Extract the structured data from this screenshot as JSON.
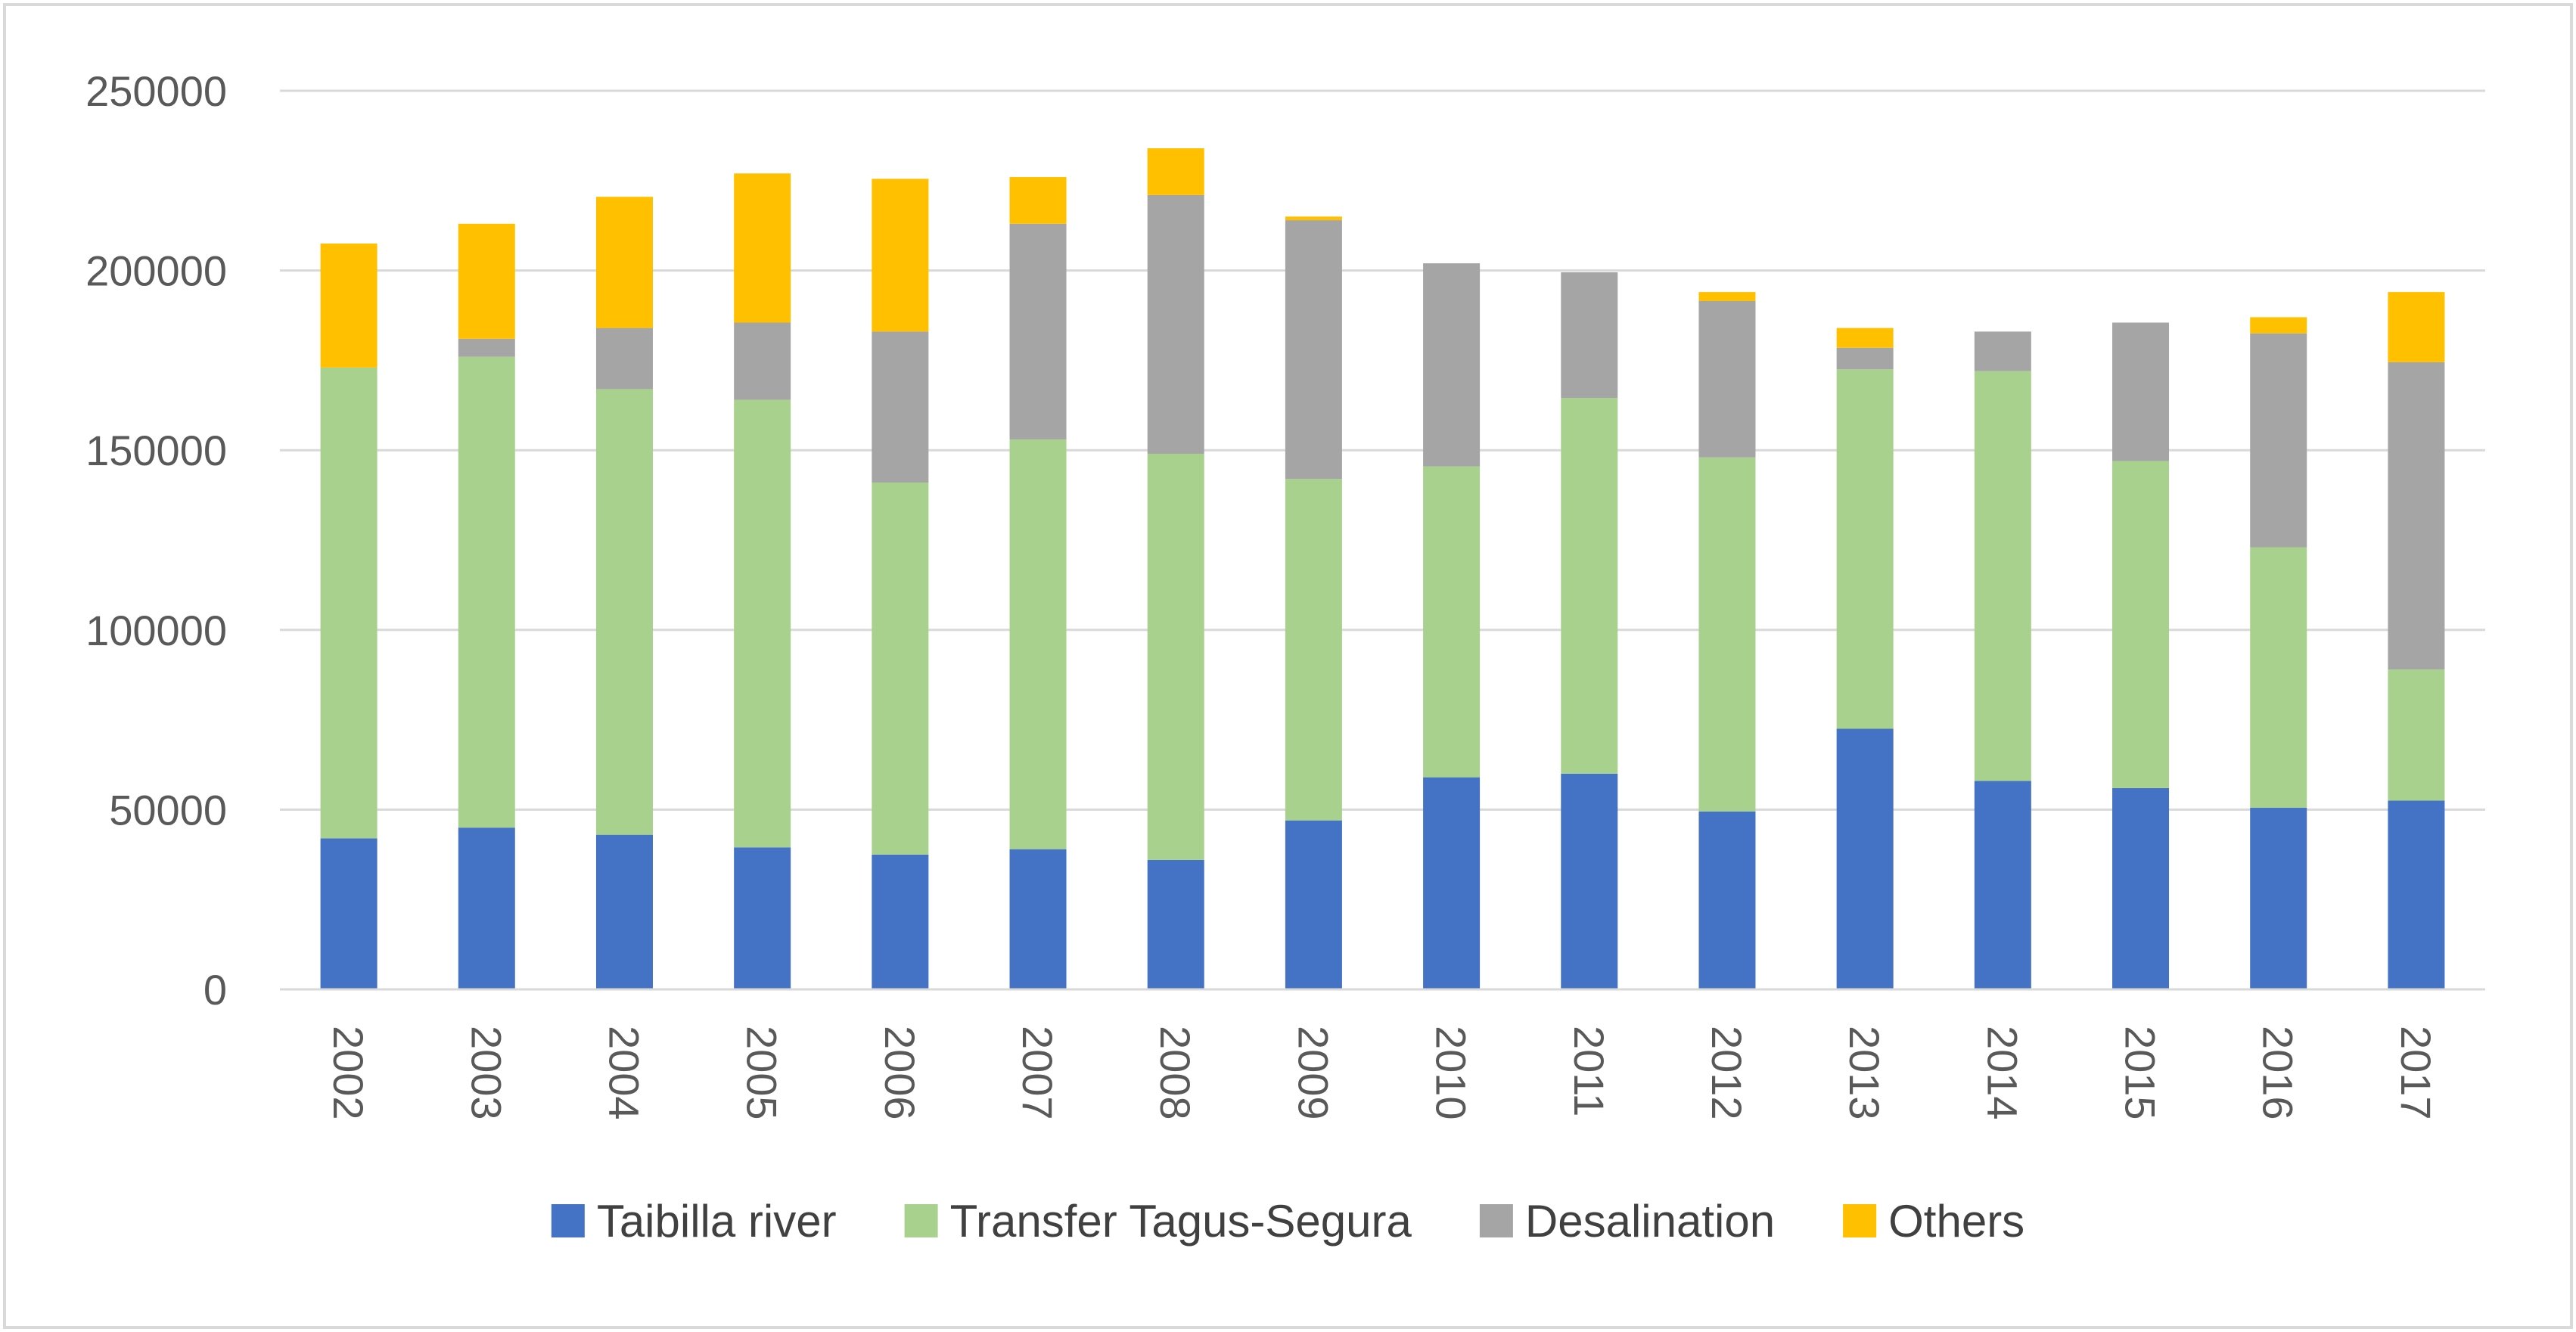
{
  "chart_data": {
    "type": "bar",
    "stacked": true,
    "title": "",
    "xlabel": "",
    "ylabel": "",
    "ylim": [
      0,
      250000
    ],
    "yticks": [
      0,
      50000,
      100000,
      150000,
      200000,
      250000
    ],
    "grid": true,
    "legend_position": "bottom",
    "categories": [
      "2002",
      "2003",
      "2004",
      "2005",
      "2006",
      "2007",
      "2008",
      "2009",
      "2010",
      "2011",
      "2012",
      "2013",
      "2014",
      "2015",
      "2016",
      "2017"
    ],
    "series": [
      {
        "name": "Taibilla river",
        "color": "#4472C4",
        "values": [
          42000,
          45000,
          43000,
          39500,
          37500,
          39000,
          36000,
          47000,
          59000,
          60000,
          49500,
          72500,
          58000,
          56000,
          50500,
          52500
        ]
      },
      {
        "name": "Transfer Tagus-Segura",
        "color": "#A9D18E",
        "values": [
          131000,
          131000,
          124000,
          124500,
          103500,
          114000,
          113000,
          95000,
          86500,
          104500,
          98500,
          100000,
          114000,
          91000,
          72500,
          36500
        ]
      },
      {
        "name": "Desalination",
        "color": "#A5A5A5",
        "values": [
          0,
          5000,
          17000,
          21500,
          42000,
          60000,
          72000,
          72000,
          56500,
          35000,
          43500,
          6000,
          11000,
          38500,
          59500,
          85500
        ]
      },
      {
        "name": "Others",
        "color": "#FFC000",
        "values": [
          34500,
          32000,
          36500,
          41500,
          42500,
          13000,
          13000,
          1000,
          0,
          0,
          2500,
          5500,
          0,
          0,
          4500,
          19500
        ]
      }
    ]
  }
}
